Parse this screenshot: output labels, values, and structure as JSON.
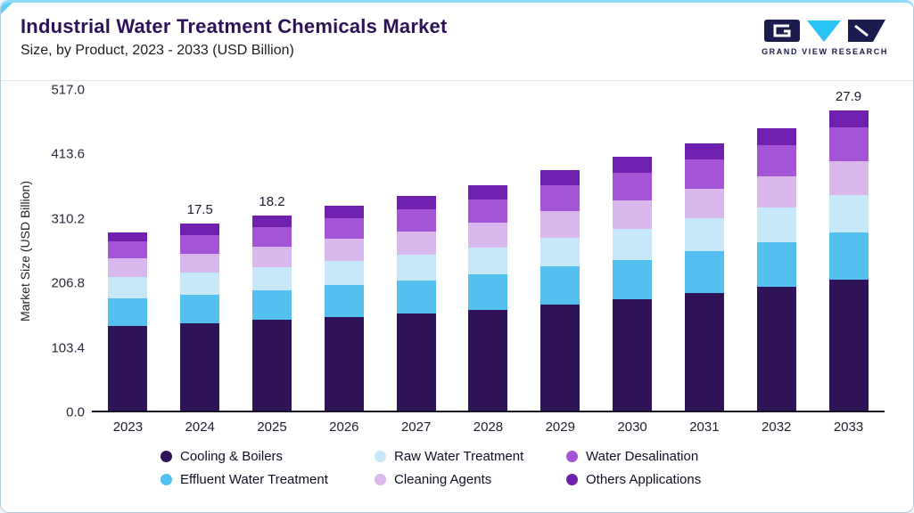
{
  "header": {
    "title": "Industrial Water Treatment Chemicals Market",
    "subtitle": "Size, by Product, 2023 - 2033 (USD Billion)",
    "logo_text": "GRAND VIEW RESEARCH"
  },
  "chart_data": {
    "type": "bar",
    "stacked": true,
    "title": "Industrial Water Treatment Chemicals Market Size, by Product, 2023 - 2033 (USD Billion)",
    "xlabel": "",
    "ylabel": "Market Size (USD Billion)",
    "ylim": [
      0,
      517.0
    ],
    "ytick_labels": [
      "0.0",
      "103.4",
      "206.8",
      "310.2",
      "413.6",
      "517.0"
    ],
    "grid": false,
    "legend_position": "bottom",
    "categories": [
      "2023",
      "2024",
      "2025",
      "2026",
      "2027",
      "2028",
      "2029",
      "2030",
      "2031",
      "2032",
      "2033"
    ],
    "series": [
      {
        "name": "Cooling & Boilers",
        "color": "#2e1356",
        "values": [
          135,
          140,
          145,
          150,
          155,
          161,
          170,
          178,
          188,
          198,
          210
        ]
      },
      {
        "name": "Effluent Water Treatment",
        "color": "#53c0f0",
        "values": [
          45,
          46,
          48,
          51,
          54,
          57,
          61,
          64,
          68,
          72,
          76
        ]
      },
      {
        "name": "Raw Water Treatment",
        "color": "#c7e8f8",
        "values": [
          34,
          35,
          37,
          39,
          41,
          43,
          46,
          49,
          52,
          55,
          59
        ]
      },
      {
        "name": "Cleaning Agents",
        "color": "#d9b8ee",
        "values": [
          30,
          31,
          33,
          35,
          37,
          40,
          43,
          46,
          48,
          51,
          55
        ]
      },
      {
        "name": "Water Desalination",
        "color": "#a455d6",
        "values": [
          28,
          30,
          32,
          34,
          36,
          38,
          42,
          45,
          47,
          50,
          54
        ]
      },
      {
        "name": "Others Applications",
        "color": "#7020ae",
        "values": [
          14,
          17.5,
          18.2,
          20,
          21,
          22,
          24,
          25,
          26,
          27,
          27.9
        ]
      }
    ],
    "annotations": [
      {
        "category": "2024",
        "text": "17.5"
      },
      {
        "category": "2025",
        "text": "18.2"
      },
      {
        "category": "2033",
        "text": "27.9"
      }
    ],
    "legend": [
      "Cooling & Boilers",
      "Raw Water Treatment",
      "Water Desalination",
      "Effluent Water Treatment",
      "Cleaning Agents",
      "Others Applications"
    ]
  }
}
